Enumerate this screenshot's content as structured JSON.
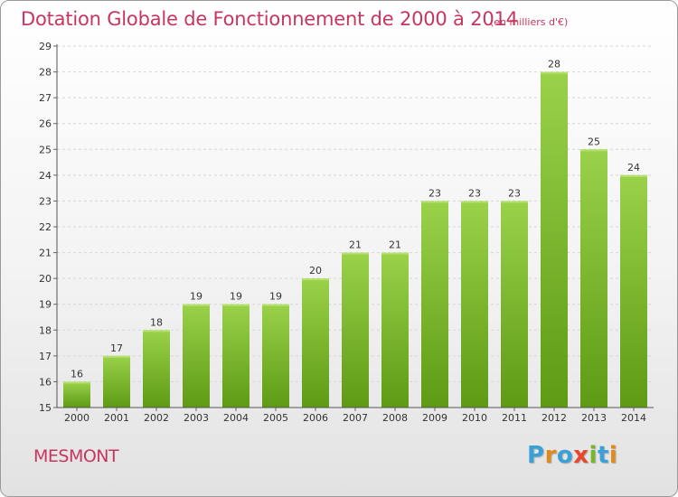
{
  "page": {
    "title": "Dotation Globale de Fonctionnement de 2000 à 2014",
    "unit_note": "(en milliers d'€)",
    "town": "MESMONT",
    "logo": "Proxiti",
    "logo_colors": [
      "#3aa0d8",
      "#e08a1e",
      "#3aa0d8",
      "#e9462c",
      "#77b82a",
      "#3aa0d8",
      "#e08a1e"
    ]
  },
  "chart_data": {
    "type": "bar",
    "title": "Dotation Globale de Fonctionnement de 2000 à 2014",
    "subtitle": "(en milliers d'€)",
    "categories": [
      "2000",
      "2001",
      "2002",
      "2003",
      "2004",
      "2005",
      "2006",
      "2007",
      "2008",
      "2009",
      "2010",
      "2011",
      "2012",
      "2013",
      "2014"
    ],
    "values": [
      16,
      17,
      18,
      19,
      19,
      19,
      20,
      21,
      21,
      23,
      23,
      23,
      28,
      25,
      24
    ],
    "ylim": [
      15,
      29
    ],
    "yticks": [
      15,
      16,
      17,
      18,
      19,
      20,
      21,
      22,
      23,
      24,
      25,
      26,
      27,
      28,
      29
    ],
    "grid": true,
    "bar_color_top": "#9ad24a",
    "bar_color_bottom": "#5e9a14",
    "data_labels": true
  }
}
